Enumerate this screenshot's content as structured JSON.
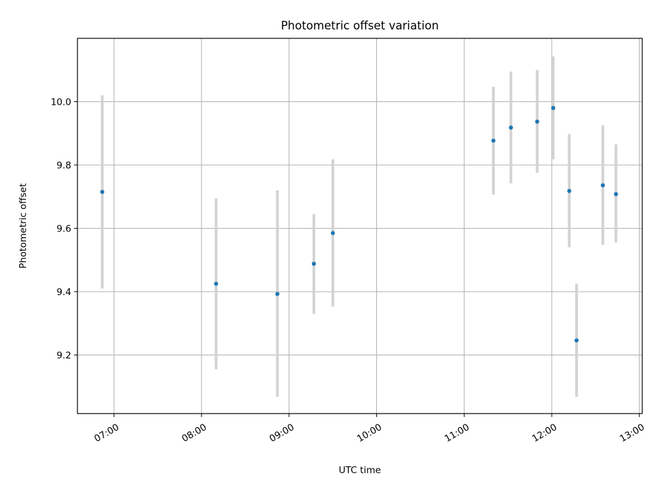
{
  "chart_data": {
    "type": "scatter",
    "title": "Photometric offset variation",
    "xlabel": "UTC time",
    "ylabel": "Photometric offset",
    "x_axis": "time",
    "xlim": [
      "06:35",
      "13:02"
    ],
    "ylim": [
      9.015,
      10.2
    ],
    "x_ticks": [
      "07:00",
      "08:00",
      "09:00",
      "10:00",
      "11:00",
      "12:00",
      "13:00"
    ],
    "y_ticks": [
      9.2,
      9.4,
      9.6,
      9.8,
      10.0
    ],
    "grid": true,
    "point_color": "#1f77b4",
    "errorbar_color": "#d3d3d3",
    "points": [
      {
        "x": "06:52",
        "y": 9.715,
        "ylow": 9.41,
        "yhigh": 10.02
      },
      {
        "x": "08:10",
        "y": 9.425,
        "ylow": 9.155,
        "yhigh": 9.695
      },
      {
        "x": "08:52",
        "y": 9.393,
        "ylow": 9.068,
        "yhigh": 9.72
      },
      {
        "x": "09:17",
        "y": 9.488,
        "ylow": 9.33,
        "yhigh": 9.645
      },
      {
        "x": "09:30",
        "y": 9.585,
        "ylow": 9.353,
        "yhigh": 9.818
      },
      {
        "x": "11:20",
        "y": 9.877,
        "ylow": 9.707,
        "yhigh": 10.047
      },
      {
        "x": "11:32",
        "y": 9.918,
        "ylow": 9.742,
        "yhigh": 10.095
      },
      {
        "x": "11:50",
        "y": 9.937,
        "ylow": 9.776,
        "yhigh": 10.1
      },
      {
        "x": "12:01",
        "y": 9.98,
        "ylow": 9.818,
        "yhigh": 10.143
      },
      {
        "x": "12:12",
        "y": 9.718,
        "ylow": 9.54,
        "yhigh": 9.898
      },
      {
        "x": "12:17",
        "y": 9.246,
        "ylow": 9.068,
        "yhigh": 9.425
      },
      {
        "x": "12:35",
        "y": 9.736,
        "ylow": 9.548,
        "yhigh": 9.925
      },
      {
        "x": "12:44",
        "y": 9.708,
        "ylow": 9.555,
        "yhigh": 9.865
      }
    ]
  }
}
